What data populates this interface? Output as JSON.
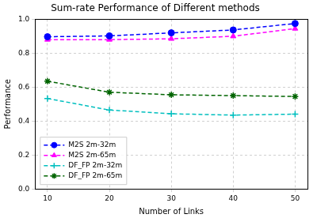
{
  "chart_data": {
    "type": "line",
    "title": "Sum-rate Performance of Different methods",
    "x_label": "Number of Links",
    "y_label": "Performance",
    "x": [
      10,
      20,
      30,
      40,
      50
    ],
    "xlim": [
      8,
      52
    ],
    "xticks": [
      10,
      20,
      30,
      40,
      50
    ],
    "ylim": [
      0,
      1
    ],
    "yticks": [
      {
        "value": 0,
        "label": "0.0"
      },
      0.2,
      0.4,
      0.6,
      0.8,
      {
        "value": 1,
        "label": "1.0"
      }
    ],
    "grid": true,
    "legend": "lower left",
    "series": [
      {
        "name": "M2S 2m-32m",
        "color": "#0000ff",
        "marker": "circle",
        "line_style": "dashed",
        "values": [
          0.897,
          0.902,
          0.92,
          0.937,
          0.975
        ]
      },
      {
        "name": "M2S 2m-65m",
        "color": "#ff00ff",
        "marker": "triangle",
        "line_style": "dashed",
        "values": [
          0.88,
          0.88,
          0.885,
          0.9,
          0.945
        ]
      },
      {
        "name": "DF_FP 2m-32m",
        "color": "#00bfbf",
        "marker": "plus",
        "line_style": "dashed",
        "values": [
          0.533,
          0.465,
          0.443,
          0.435,
          0.441
        ]
      },
      {
        "name": "DF_FP 2m-65m",
        "color": "#006400",
        "marker": "star",
        "line_style": "dashed",
        "values": [
          0.635,
          0.57,
          0.555,
          0.55,
          0.545
        ]
      }
    ]
  }
}
